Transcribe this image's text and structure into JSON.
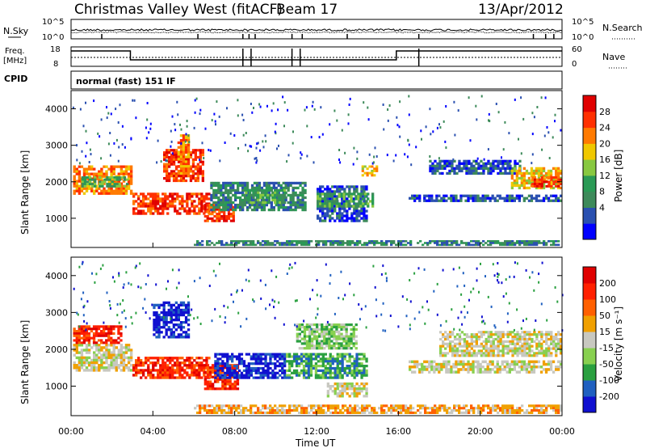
{
  "header": {
    "station": "Christmas Valley West (fitACF)",
    "beam": "Beam 17",
    "date": "13/Apr/2012"
  },
  "noise_panel": {
    "left_label": "N.Sky",
    "right_label": "N.Search",
    "ticks_left": [
      "10^5",
      "10^0"
    ],
    "ticks_right": [
      "10^5",
      "10^0"
    ]
  },
  "freq_panel": {
    "left_label_1": "Freq.",
    "left_label_2": "[MHz]",
    "right_label": "Nave",
    "ticks_left": [
      "18",
      "8"
    ],
    "ticks_right": [
      "60",
      "0"
    ],
    "freq_steps": [
      {
        "t": 0.0,
        "v": 1
      },
      {
        "t": 2.9,
        "v": 0
      },
      {
        "t": 15.9,
        "v": 1
      },
      {
        "t": 24.0,
        "v": 1
      }
    ]
  },
  "cpid": {
    "label": "CPID",
    "value": "normal (fast) 151 IF"
  },
  "colors": {
    "power_scale": [
      "#0000ff",
      "#2a50b0",
      "#3d8a5a",
      "#2a9a55",
      "#88c840",
      "#f0c800",
      "#ff7a00",
      "#ff3000",
      "#e00000"
    ],
    "velocity_scale": [
      "#1010d0",
      "#2060c0",
      "#2aa040",
      "#88d050",
      "#c8c8c0",
      "#f0a000",
      "#ff6000",
      "#ff2000",
      "#e00000"
    ]
  },
  "chart_data": [
    {
      "type": "heatmap",
      "name": "power",
      "title": "",
      "xlabel": "Time UT",
      "ylabel": "Slant Range [km]",
      "colorbar_label": "Power [dB]",
      "xlim": [
        0,
        24
      ],
      "ylim": [
        200,
        4500
      ],
      "x_ticks": [
        "00:00",
        "04:00",
        "08:00",
        "12:00",
        "16:00",
        "20:00",
        "00:00"
      ],
      "y_ticks": [
        1000,
        2000,
        3000,
        4000
      ],
      "colorbar_ticks": [
        "28",
        "24",
        "20",
        "16",
        "12",
        "8",
        "4"
      ],
      "bands": [
        {
          "t0": 0.1,
          "t1": 3.0,
          "r0": 1650,
          "r1": 2450,
          "level": 6
        },
        {
          "t0": 0.5,
          "t1": 2.8,
          "r0": 1850,
          "r1": 2150,
          "level": 3
        },
        {
          "t0": 3.0,
          "t1": 6.8,
          "r0": 1100,
          "r1": 1700,
          "level": 7
        },
        {
          "t0": 4.5,
          "t1": 6.5,
          "r0": 2000,
          "r1": 2900,
          "level": 7
        },
        {
          "t0": 5.2,
          "t1": 5.8,
          "r0": 2200,
          "r1": 3300,
          "level": 6
        },
        {
          "t0": 6.5,
          "t1": 8.0,
          "r0": 900,
          "r1": 1400,
          "level": 7
        },
        {
          "t0": 6.8,
          "t1": 11.5,
          "r0": 1200,
          "r1": 2000,
          "level": 2
        },
        {
          "t0": 8.5,
          "t1": 10.5,
          "r0": 1400,
          "r1": 1800,
          "level": 3
        },
        {
          "t0": 12.0,
          "t1": 14.5,
          "r0": 900,
          "r1": 1900,
          "level": 1
        },
        {
          "t0": 12.0,
          "t1": 14.8,
          "r0": 1300,
          "r1": 1700,
          "level": 3
        },
        {
          "t0": 14.2,
          "t1": 15.0,
          "r0": 2150,
          "r1": 2450,
          "level": 5
        },
        {
          "t0": 16.5,
          "t1": 24.0,
          "r0": 1450,
          "r1": 1650,
          "level": 1
        },
        {
          "t0": 17.5,
          "t1": 22.0,
          "r0": 2200,
          "r1": 2600,
          "level": 1
        },
        {
          "t0": 21.5,
          "t1": 24.0,
          "r0": 1800,
          "r1": 2400,
          "level": 5
        },
        {
          "t0": 22.5,
          "t1": 24.0,
          "r0": 1850,
          "r1": 2150,
          "level": 7
        },
        {
          "t0": 6.0,
          "t1": 24.0,
          "r0": 250,
          "r1": 400,
          "level": 2
        }
      ]
    },
    {
      "type": "heatmap",
      "name": "velocity",
      "title": "",
      "xlabel": "Time UT",
      "ylabel": "Slant Range [km]",
      "colorbar_label": "Velocity [m s⁻¹]",
      "xlim": [
        0,
        24
      ],
      "ylim": [
        200,
        4500
      ],
      "x_ticks": [
        "00:00",
        "04:00",
        "08:00",
        "12:00",
        "16:00",
        "20:00",
        "00:00"
      ],
      "y_ticks": [
        1000,
        2000,
        3000,
        4000
      ],
      "colorbar_ticks": [
        "200",
        "100",
        "50",
        "15",
        "-15",
        "-50",
        "-100",
        "-200"
      ],
      "bands": [
        {
          "t0": 0.1,
          "t1": 3.0,
          "r0": 1400,
          "r1": 2150,
          "level": 4
        },
        {
          "t0": 0.1,
          "t1": 2.5,
          "r0": 2150,
          "r1": 2650,
          "level": 7
        },
        {
          "t0": 3.0,
          "t1": 6.8,
          "r0": 1200,
          "r1": 1800,
          "level": 7
        },
        {
          "t0": 4.0,
          "t1": 5.8,
          "r0": 2300,
          "r1": 3300,
          "level": 0
        },
        {
          "t0": 6.5,
          "t1": 8.2,
          "r0": 900,
          "r1": 1600,
          "level": 7
        },
        {
          "t0": 7.0,
          "t1": 10.5,
          "r0": 1200,
          "r1": 1900,
          "level": 0
        },
        {
          "t0": 10.5,
          "t1": 14.5,
          "r0": 1200,
          "r1": 1900,
          "level": 2
        },
        {
          "t0": 11.0,
          "t1": 14.0,
          "r0": 2000,
          "r1": 2700,
          "level": 3
        },
        {
          "t0": 12.5,
          "t1": 14.5,
          "r0": 700,
          "r1": 1100,
          "level": 4
        },
        {
          "t0": 16.5,
          "t1": 24.0,
          "r0": 1350,
          "r1": 1700,
          "level": 4
        },
        {
          "t0": 18.0,
          "t1": 24.0,
          "r0": 1800,
          "r1": 2500,
          "level": 4
        },
        {
          "t0": 6.0,
          "t1": 24.0,
          "r0": 250,
          "r1": 500,
          "level": 5
        }
      ]
    }
  ]
}
